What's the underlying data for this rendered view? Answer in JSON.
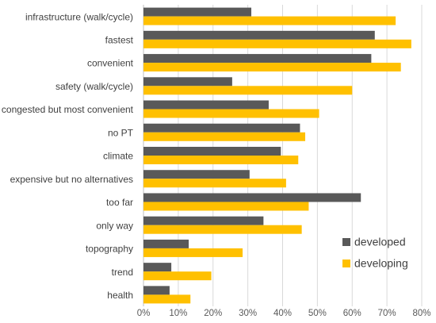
{
  "chart_data": {
    "type": "bar",
    "orientation": "horizontal",
    "categories": [
      "infrastructure (walk/cycle)",
      "fastest",
      "convenient",
      "safety (walk/cycle)",
      "congested but most convenient",
      "no PT",
      "climate",
      "expensive but no alternatives",
      "too far",
      "only way",
      "topography",
      "trend",
      "health"
    ],
    "series": [
      {
        "name": "developed",
        "color": "#595959",
        "values": [
          31,
          66.5,
          65.5,
          25.5,
          36,
          45,
          39.5,
          30.5,
          62.5,
          34.5,
          13,
          8,
          7.5
        ]
      },
      {
        "name": "developing",
        "color": "#ffc000",
        "values": [
          72.5,
          77,
          74,
          60,
          50.5,
          46.5,
          44.5,
          41,
          47.5,
          45.5,
          28.5,
          19.5,
          13.5
        ]
      }
    ],
    "xlim": [
      0,
      80
    ],
    "xticks": [
      "0%",
      "10%",
      "20%",
      "30%",
      "40%",
      "50%",
      "60%",
      "70%",
      "80%"
    ],
    "grid": "vertical",
    "legend_position": "bottom-right",
    "title": "",
    "xlabel": "",
    "ylabel": ""
  }
}
